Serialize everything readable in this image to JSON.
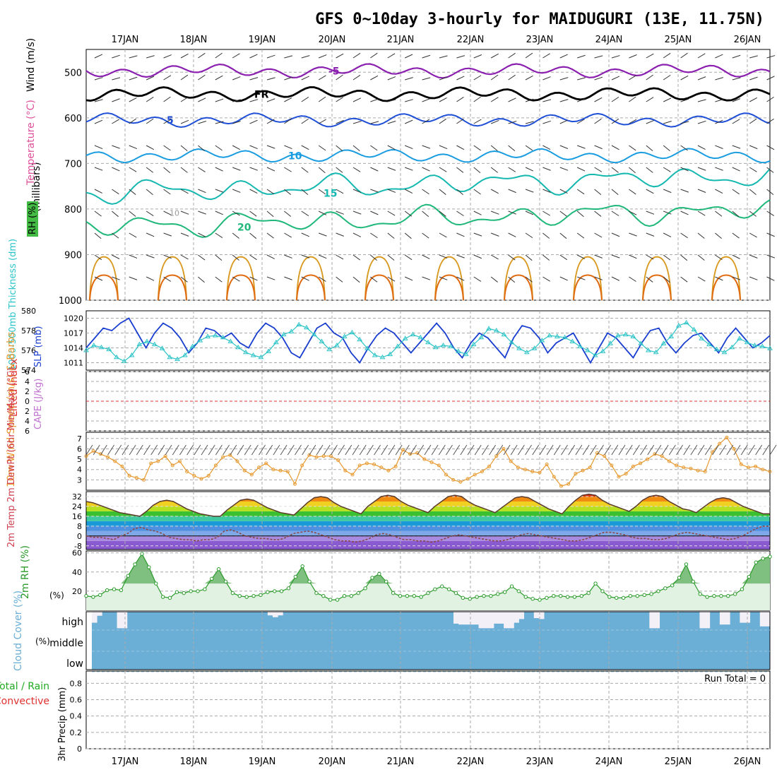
{
  "title": "GFS 0~10day 3-hourly for MAIDUGURI (13E, 11.75N)",
  "date_labels": [
    "17JAN",
    "18JAN",
    "19JAN",
    "20JAN",
    "21JAN",
    "22JAN",
    "23JAN",
    "24JAN",
    "25JAN",
    "26JAN"
  ],
  "colors": {
    "temp_neg": "#8a1fb0",
    "temp_fr": "#000000",
    "temp5": "#1f4fd6",
    "temp10": "#1a9ce0",
    "temp15": "#14b8b0",
    "temp20": "#1fb87a",
    "temp_warm": "#d99a22",
    "temp_hot": "#e06a10",
    "slp": "#1a3fd0",
    "thickness": "#2ec4c8",
    "lifted": "#e03030",
    "cape": "#c070d0",
    "wind10": "#e89a30",
    "rh2m": "#2a9a2a",
    "cloud": "#6baed6",
    "precip_total": "#22aa22",
    "precip_conv": "#e03030"
  },
  "charts": [
    {
      "id": "upper_air",
      "type": "contour",
      "ylabel_wind": "Wind (m/s)",
      "ylabel_temp": "Temperature (°C)",
      "ylabel_rh": "RH (%)",
      "ylabel_units": "(millibars)",
      "yticks": [
        500,
        600,
        700,
        800,
        900,
        1000
      ],
      "ylim": [
        1000,
        450
      ],
      "contour_labels": [
        {
          "label": "-5",
          "value": -5
        },
        {
          "label": "FR",
          "value": 0
        },
        {
          "label": "5",
          "value": 5
        },
        {
          "label": "10",
          "value": 10
        },
        {
          "label": "15",
          "value": 15
        },
        {
          "label": "20",
          "value": 20
        }
      ],
      "rh_contour_label": "10"
    },
    {
      "id": "slp_thickness",
      "type": "line",
      "ylabel_left": "1000-500mb Thickness (dm)",
      "ylabel_right": "SLP (mb)",
      "thickness_ticks": [
        574,
        576,
        578,
        580
      ],
      "slp_ticks": [
        1011,
        1014,
        1017,
        1020
      ],
      "thickness_lim": [
        574,
        580
      ],
      "slp_lim": [
        1009.5,
        1021.5
      ],
      "slp": [
        1014,
        1016,
        1018,
        1017.5,
        1019,
        1020,
        1017,
        1014,
        1017,
        1019,
        1018,
        1016,
        1013,
        1015,
        1018,
        1017.5,
        1016,
        1017,
        1015,
        1014,
        1017,
        1019,
        1018,
        1016,
        1013,
        1012,
        1015,
        1018,
        1019,
        1017,
        1016,
        1013,
        1011,
        1014,
        1016.5,
        1018,
        1017,
        1015,
        1013,
        1015,
        1017,
        1019,
        1017,
        1014,
        1012,
        1015,
        1017,
        1016,
        1014,
        1012,
        1016,
        1018.5,
        1018,
        1016,
        1013,
        1015,
        1016,
        1017,
        1014,
        1011,
        1014,
        1017,
        1016,
        1014,
        1012,
        1015,
        1017.5,
        1018,
        1015,
        1013,
        1015,
        1016.5,
        1017,
        1015,
        1013,
        1016,
        1018,
        1016,
        1014,
        1015,
        1016.5
      ],
      "thickness": [
        576,
        576.5,
        576.3,
        576.1,
        575.3,
        574.9,
        575.5,
        576.6,
        576.9,
        576.6,
        576.2,
        575.3,
        575.1,
        575.5,
        576.4,
        577.0,
        577.4,
        577.5,
        577.3,
        576.9,
        576.3,
        575.8,
        575.5,
        575.3,
        575.9,
        576.8,
        577.6,
        577.9,
        578.6,
        578.3,
        577.6,
        576.9,
        576.1,
        576.5,
        577.4,
        577.8,
        577.1,
        576.2,
        575.5,
        575.3,
        575.6,
        576.4,
        577.2,
        577.6,
        577.3,
        576.8,
        576.3,
        576.5,
        576.4,
        575.9,
        575.6,
        576.6,
        577.3,
        578.2,
        578.0,
        577.6,
        576.8,
        576.2,
        575.8,
        576.2,
        577.0,
        577.5,
        577.4,
        577.3,
        576.9,
        576.4,
        576.0,
        575.5,
        575.9,
        576.7,
        577.5,
        577.6,
        577.4,
        576.7,
        576.0,
        575.8,
        576.7,
        577.4,
        578.5,
        578.8,
        578.1,
        577.2,
        576.6,
        576.1,
        575.8,
        576.3,
        577.2,
        576.8,
        576.5,
        576.4,
        576.2
      ]
    },
    {
      "id": "instability",
      "type": "line",
      "ylabel_left": "Lifted Index",
      "ylabel_right": "CAPE (J/kg)",
      "ticks": [
        6,
        4,
        2,
        0,
        2,
        4,
        6
      ],
      "ylim": [
        -6,
        6
      ],
      "lifted_index": [],
      "cape": []
    },
    {
      "id": "wind10m",
      "type": "line",
      "ylabel": "10m Wind Speed (m/s) & Barbs",
      "yticks": [
        3,
        4,
        5,
        6,
        7
      ],
      "ylim": [
        2,
        7.6
      ],
      "values": [
        5.3,
        5.8,
        5.5,
        5.2,
        4.8,
        4.3,
        3.4,
        3.2,
        3.0,
        4.6,
        4.8,
        5.3,
        4.4,
        4.8,
        3.8,
        3.4,
        3.1,
        3.4,
        4.4,
        5.2,
        5.4,
        4.8,
        3.9,
        3.5,
        4.2,
        4.6,
        4.0,
        3.9,
        3.8,
        2.6,
        4.4,
        5.4,
        5.2,
        5.3,
        5.3,
        4.9,
        3.9,
        3.5,
        4.4,
        4.6,
        4.5,
        4.2,
        3.9,
        4.3,
        5.9,
        5.5,
        5.6,
        5.0,
        4.7,
        4.4,
        3.5,
        3.0,
        2.8,
        3.1,
        3.5,
        3.8,
        4.3,
        5.3,
        6.0,
        4.8,
        4.2,
        4.0,
        3.8,
        3.7,
        4.5,
        3.3,
        2.4,
        2.6,
        3.6,
        3.9,
        4.2,
        5.6,
        5.3,
        4.4,
        3.3,
        3.6,
        4.3,
        4.6,
        5.0,
        5.5,
        5.3,
        4.8,
        4.4,
        4.2,
        4.1,
        3.9,
        3.8,
        5.7,
        6.5,
        7.1,
        6.0,
        4.5,
        4.2,
        4.3,
        4.0,
        3.8
      ]
    },
    {
      "id": "temp2m",
      "type": "area",
      "ylabel": "2m Temp 2m DewPt (6hr Min/Max) (°C)",
      "yticks": [
        -8,
        0,
        8,
        16,
        24,
        32
      ],
      "ylim": [
        -11,
        36
      ],
      "temperature": [
        28,
        27,
        25,
        23,
        21,
        19,
        18,
        17,
        16,
        20,
        25,
        28,
        29,
        28,
        25,
        22,
        20,
        18,
        17,
        16,
        16,
        21,
        25,
        29,
        30,
        29,
        26,
        23,
        21,
        19,
        18,
        17,
        22,
        27,
        31,
        32,
        31,
        27,
        24,
        22,
        20,
        18,
        24,
        28,
        32,
        33,
        32,
        28,
        25,
        23,
        21,
        19,
        24,
        28,
        32,
        33,
        32,
        28,
        25,
        23,
        21,
        19,
        23,
        27,
        31,
        32,
        31,
        28,
        25,
        22,
        20,
        18,
        24,
        29,
        33,
        34,
        33,
        29,
        26,
        24,
        22,
        20,
        24,
        29,
        32,
        33,
        32,
        28,
        25,
        22,
        21,
        19,
        23,
        27,
        30,
        31,
        30,
        27,
        24,
        22,
        20,
        18,
        18
      ],
      "dewpoint": [
        0,
        -1,
        -1,
        -2,
        -3,
        0,
        2,
        6,
        7,
        5,
        4,
        2,
        -1,
        -2,
        -3,
        -3,
        -4,
        -3,
        -3,
        -1,
        4,
        5,
        3,
        0,
        -1,
        -2,
        -2,
        -3,
        -3,
        -1,
        2,
        3,
        4,
        3,
        1,
        -1,
        -3,
        -4,
        -4,
        -5,
        -4,
        -2,
        1,
        2,
        1,
        -1,
        -3,
        -3,
        -4,
        -4,
        -5,
        -4,
        -2,
        0,
        1,
        0,
        -1,
        -2,
        -3,
        -4,
        -4,
        -3,
        -1,
        1,
        2,
        1,
        0,
        -1,
        -2,
        -3,
        -4,
        -4,
        -3,
        -1,
        1,
        3,
        3,
        2,
        1,
        -1,
        -2,
        -2,
        -3,
        -3,
        -2,
        0,
        2,
        3,
        2,
        1,
        0,
        -1,
        -2,
        -3,
        -2,
        0,
        3,
        6,
        8,
        8
      ]
    },
    {
      "id": "rh2m",
      "type": "area",
      "ylabel": "2m RH (%)",
      "yticks": [
        20,
        40,
        60
      ],
      "ylim": [
        0,
        62
      ],
      "values": [
        15,
        14,
        16,
        21,
        22,
        21,
        36,
        48,
        59,
        45,
        28,
        14,
        13,
        19,
        18,
        20,
        20,
        22,
        33,
        43,
        30,
        18,
        15,
        14,
        15,
        16,
        19,
        20,
        20,
        23,
        35,
        46,
        30,
        18,
        15,
        11,
        11,
        15,
        15,
        18,
        23,
        34,
        38,
        30,
        18,
        15,
        15,
        15,
        14,
        18,
        22,
        25,
        22,
        18,
        13,
        12,
        14,
        15,
        15,
        17,
        19,
        25,
        20,
        14,
        12,
        11,
        13,
        15,
        15,
        14,
        14,
        15,
        18,
        28,
        20,
        14,
        13,
        13,
        15,
        15,
        16,
        17,
        20,
        23,
        26,
        34,
        48,
        30,
        17,
        14,
        15,
        15,
        15,
        17,
        22,
        35,
        50,
        54,
        56
      ]
    },
    {
      "id": "cloud_cover",
      "type": "bar",
      "ylabel": "Cloud Cover (%)",
      "levels": [
        "high",
        "middle",
        "low"
      ],
      "high_clear": [
        60,
        22,
        0,
        0,
        0,
        90,
        90,
        0,
        0,
        0,
        0,
        0,
        0,
        0,
        0,
        0,
        0,
        0,
        0,
        0,
        0,
        0,
        0,
        0,
        0,
        0,
        0,
        0,
        0,
        0,
        0,
        0,
        0,
        0,
        0,
        20,
        30,
        20,
        0,
        0,
        0,
        0,
        0,
        0,
        0,
        0,
        0,
        0,
        0,
        0,
        0,
        0,
        0,
        0,
        0,
        0,
        0,
        0,
        0,
        0,
        0,
        0,
        0,
        0,
        0,
        0,
        0,
        0,
        0,
        0,
        0,
        0,
        65,
        70,
        70,
        70,
        70,
        90,
        90,
        90,
        65,
        65,
        90,
        90,
        60,
        40,
        0,
        0,
        35,
        40,
        0,
        0,
        0,
        0,
        0,
        0,
        0,
        0,
        0,
        0,
        0,
        0,
        0,
        0,
        0,
        0,
        0,
        0,
        0,
        0,
        0,
        90,
        90,
        0,
        0,
        0,
        0,
        0,
        0,
        0,
        0,
        90,
        90,
        0,
        0,
        70,
        70,
        0,
        0,
        60,
        60,
        0,
        0,
        80,
        80
      ]
    },
    {
      "id": "precip",
      "type": "bar",
      "ylabel_left": "Total / Rain",
      "ylabel_conv": "Convective",
      "ylabel": "3hr Precip (mm)",
      "run_total_label": "Run Total = 0",
      "yticks": [
        0,
        0.2,
        0.4,
        0.6,
        0.8
      ],
      "ylim": [
        0,
        0.95
      ],
      "values": []
    }
  ]
}
